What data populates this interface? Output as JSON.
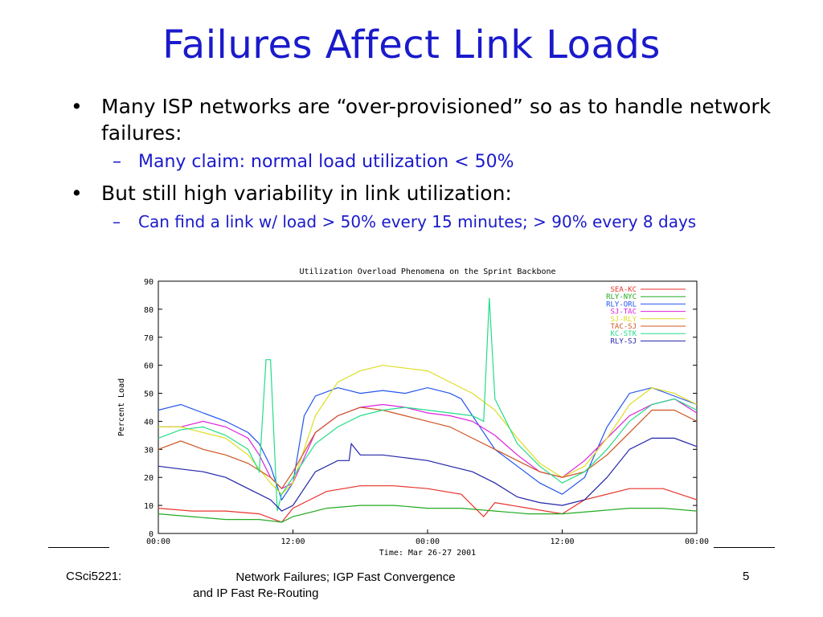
{
  "slide": {
    "title": "Failures Affect Link Loads",
    "bullets": [
      {
        "text": "Many ISP networks are “over-provisioned” so as to handle network failures:",
        "sub": [
          "Many claim: normal load utilization < 50%"
        ]
      },
      {
        "text": " But still  high variability in link utilization:",
        "sub": [
          "Can find a link w/ load > 50% every 15 minutes; > 90% every 8 days"
        ]
      }
    ],
    "bullet_glyph": "•",
    "dash_glyph": "–"
  },
  "footer": {
    "left": "CSci5221:",
    "center_line1": "Network Failures; IGP Fast Convergence",
    "center_line2": "and IP Fast Re-Routing",
    "page": "5"
  },
  "chart_data": {
    "type": "line",
    "title": "Utilization Overload Phenomena on the Sprint Backbone",
    "xlabel": "Time: Mar 26-27 2001",
    "ylabel": "Percent Load",
    "ylim": [
      0,
      90
    ],
    "yticks": [
      0,
      10,
      20,
      30,
      40,
      50,
      60,
      70,
      80,
      90
    ],
    "xlim": [
      0,
      48
    ],
    "xtick_labels": [
      "00:00",
      "12:00",
      "00:00",
      "12:00",
      "00:00"
    ],
    "xtick_values": [
      0,
      12,
      24,
      36,
      48
    ],
    "grid": false,
    "legend_position": "top-right",
    "series": [
      {
        "name": "SEA-KC",
        "color": "#e8322a",
        "x": [
          0,
          3,
          6,
          9,
          11,
          12,
          15,
          18,
          21,
          24,
          27,
          29,
          30,
          33,
          36,
          38,
          42,
          45,
          48
        ],
        "y": [
          9,
          8,
          8,
          7,
          4,
          9,
          15,
          17,
          17,
          16,
          14,
          6,
          11,
          9,
          7,
          12,
          16,
          16,
          12
        ]
      },
      {
        "name": "RLY-NYC",
        "color": "#22aa22",
        "x": [
          0,
          3,
          6,
          9,
          11,
          12,
          15,
          18,
          21,
          24,
          27,
          30,
          33,
          36,
          39,
          42,
          45,
          48
        ],
        "y": [
          7,
          6,
          5,
          5,
          4,
          6,
          9,
          10,
          10,
          9,
          9,
          8,
          7,
          7,
          8,
          9,
          9,
          8
        ]
      },
      {
        "name": "RLY-ORL",
        "color": "#2255ee",
        "x": [
          0,
          2,
          4,
          6,
          8,
          9,
          10,
          11,
          12,
          13,
          14,
          16,
          18,
          20,
          22,
          24,
          26,
          27,
          29,
          30,
          32,
          34,
          36,
          38,
          40,
          42,
          44,
          46,
          48
        ],
        "y": [
          44,
          46,
          43,
          40,
          36,
          32,
          24,
          12,
          18,
          42,
          49,
          52,
          50,
          51,
          50,
          52,
          50,
          48,
          36,
          30,
          24,
          18,
          14,
          20,
          38,
          50,
          52,
          49,
          46
        ]
      },
      {
        "name": "SJ-TAC",
        "color": "#dd22dd",
        "x": [
          0,
          2,
          4,
          6,
          8,
          9,
          10,
          11,
          12,
          14,
          16,
          18,
          20,
          22,
          24,
          26,
          28,
          30,
          32,
          34,
          36,
          38,
          40,
          42,
          44,
          46,
          48
        ],
        "y": [
          38,
          38,
          40,
          38,
          34,
          28,
          20,
          16,
          18,
          36,
          42,
          45,
          46,
          45,
          43,
          42,
          40,
          35,
          28,
          22,
          20,
          26,
          34,
          42,
          46,
          48,
          43
        ]
      },
      {
        "name": "SJ-RLY",
        "color": "#dddd22",
        "x": [
          0,
          2,
          4,
          6,
          8,
          10,
          11,
          12,
          14,
          16,
          18,
          20,
          22,
          24,
          26,
          28,
          30,
          32,
          34,
          36,
          38,
          40,
          42,
          44,
          46,
          48
        ],
        "y": [
          38,
          38,
          36,
          34,
          28,
          18,
          14,
          18,
          42,
          54,
          58,
          60,
          59,
          58,
          54,
          50,
          44,
          34,
          25,
          20,
          24,
          34,
          46,
          52,
          50,
          46
        ]
      },
      {
        "name": "TAC-SJ",
        "color": "#cc5522",
        "x": [
          0,
          2,
          4,
          6,
          8,
          10,
          11,
          12,
          14,
          16,
          18,
          20,
          22,
          24,
          26,
          28,
          30,
          32,
          34,
          36,
          38,
          40,
          42,
          44,
          46,
          48
        ],
        "y": [
          30,
          33,
          30,
          28,
          25,
          20,
          16,
          22,
          36,
          42,
          45,
          44,
          42,
          40,
          38,
          34,
          30,
          26,
          22,
          20,
          22,
          28,
          36,
          44,
          44,
          40
        ]
      },
      {
        "name": "KC-STK",
        "color": "#22dd88",
        "x": [
          0,
          2,
          4,
          6,
          8,
          9,
          9.6,
          10,
          10.6,
          11,
          12,
          14,
          16,
          18,
          20,
          22,
          24,
          26,
          28,
          29,
          29.5,
          30,
          32,
          34,
          36,
          38,
          40,
          42,
          44,
          46,
          48
        ],
        "y": [
          34,
          37,
          38,
          35,
          30,
          22,
          62,
          62,
          8,
          14,
          20,
          32,
          38,
          42,
          44,
          45,
          44,
          43,
          42,
          40,
          84,
          48,
          32,
          24,
          18,
          22,
          30,
          40,
          46,
          48,
          44
        ]
      },
      {
        "name": "RLY-SJ",
        "color": "#2222aa",
        "x": [
          0,
          2,
          4,
          6,
          8,
          10,
          11,
          12,
          14,
          16,
          17,
          17.2,
          18,
          20,
          22,
          24,
          26,
          28,
          30,
          32,
          34,
          36,
          38,
          40,
          42,
          44,
          46,
          48
        ],
        "y": [
          24,
          23,
          22,
          20,
          16,
          12,
          8,
          10,
          22,
          26,
          26,
          32,
          28,
          28,
          27,
          26,
          24,
          22,
          18,
          13,
          11,
          10,
          12,
          20,
          30,
          34,
          34,
          31
        ]
      }
    ]
  }
}
